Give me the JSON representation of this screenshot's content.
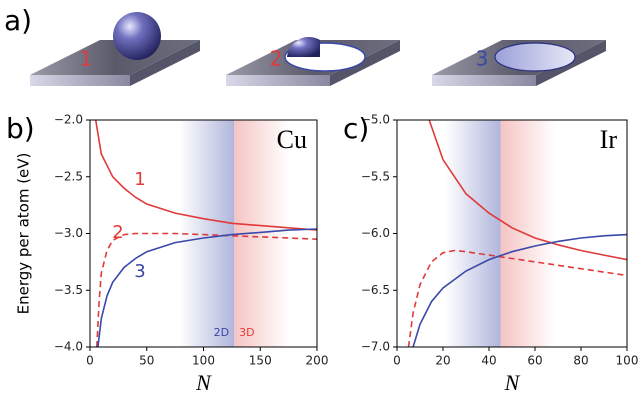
{
  "panel_a": {
    "label": "a)",
    "items": [
      "1",
      "2",
      "3"
    ]
  },
  "chart_data": [
    {
      "type": "line",
      "panel_label": "b)",
      "annotation": "Cu",
      "x_label": "N",
      "y_label": "Energy per atom (eV)",
      "xlim": [
        0,
        200
      ],
      "xticks": [
        0,
        50,
        100,
        150,
        200
      ],
      "ylim": [
        -4,
        -2
      ],
      "yticks": [
        {
          "value": -4,
          "label": "−4.0"
        },
        {
          "value": -3.5,
          "label": "−3.5"
        },
        {
          "value": -3,
          "label": "−3.0"
        },
        {
          "value": -2.5,
          "label": "−2.5"
        },
        {
          "value": -2,
          "label": "−2.0"
        }
      ],
      "crossover": 127,
      "crossover_labels": [
        "2D",
        "3D"
      ],
      "series": [
        {
          "name": "1",
          "color": "#e03a3a",
          "dashed": false,
          "x": [
            5,
            10,
            20,
            30,
            40,
            50,
            75,
            100,
            125,
            150,
            175,
            200
          ],
          "values": [
            -2.0,
            -2.3,
            -2.5,
            -2.6,
            -2.68,
            -2.74,
            -2.82,
            -2.87,
            -2.91,
            -2.93,
            -2.95,
            -2.97
          ]
        },
        {
          "name": "2",
          "color": "#e03a3a",
          "dashed": true,
          "x": [
            6,
            8,
            10,
            15,
            20,
            30,
            40,
            50,
            75,
            100,
            125,
            150,
            175,
            200
          ],
          "values": [
            -4.0,
            -3.6,
            -3.35,
            -3.15,
            -3.06,
            -3.01,
            -3.0,
            -3.0,
            -3.0,
            -3.01,
            -3.02,
            -3.03,
            -3.04,
            -3.05
          ]
        },
        {
          "name": "3",
          "color": "#3a48a8",
          "dashed": false,
          "x": [
            7,
            10,
            15,
            20,
            30,
            40,
            50,
            75,
            100,
            125,
            150,
            175,
            200
          ],
          "values": [
            -4.0,
            -3.75,
            -3.55,
            -3.43,
            -3.3,
            -3.22,
            -3.16,
            -3.08,
            -3.04,
            -3.01,
            -2.99,
            -2.97,
            -2.96
          ]
        }
      ]
    },
    {
      "type": "line",
      "panel_label": "c)",
      "annotation": "Ir",
      "x_label": "N",
      "xlim": [
        0,
        100
      ],
      "xticks": [
        0,
        20,
        40,
        60,
        80,
        100
      ],
      "ylim": [
        -7,
        -5
      ],
      "yticks": [
        {
          "value": -7,
          "label": "−7.0"
        },
        {
          "value": -6.5,
          "label": "−6.5"
        },
        {
          "value": -6,
          "label": "−6.0"
        },
        {
          "value": -5.5,
          "label": "−5.5"
        },
        {
          "value": -5,
          "label": "−5.0"
        }
      ],
      "crossover": 45,
      "series": [
        {
          "color": "#e03a3a",
          "dashed": false,
          "x": [
            14,
            20,
            30,
            40,
            50,
            60,
            70,
            80,
            90,
            100
          ],
          "values": [
            -5.0,
            -5.35,
            -5.65,
            -5.82,
            -5.95,
            -6.04,
            -6.1,
            -6.15,
            -6.19,
            -6.23
          ]
        },
        {
          "color": "#e03a3a",
          "dashed": true,
          "x": [
            5,
            7,
            10,
            15,
            20,
            25,
            30,
            40,
            50,
            60,
            70,
            80,
            90,
            100
          ],
          "values": [
            -7.0,
            -6.7,
            -6.45,
            -6.25,
            -6.17,
            -6.15,
            -6.16,
            -6.19,
            -6.22,
            -6.25,
            -6.28,
            -6.31,
            -6.34,
            -6.37
          ]
        },
        {
          "color": "#3a48a8",
          "dashed": false,
          "x": [
            7,
            10,
            15,
            20,
            30,
            40,
            50,
            60,
            70,
            80,
            90,
            100
          ],
          "values": [
            -7.0,
            -6.8,
            -6.6,
            -6.48,
            -6.33,
            -6.23,
            -6.16,
            -6.11,
            -6.07,
            -6.04,
            -6.02,
            -6.01
          ]
        }
      ]
    }
  ]
}
